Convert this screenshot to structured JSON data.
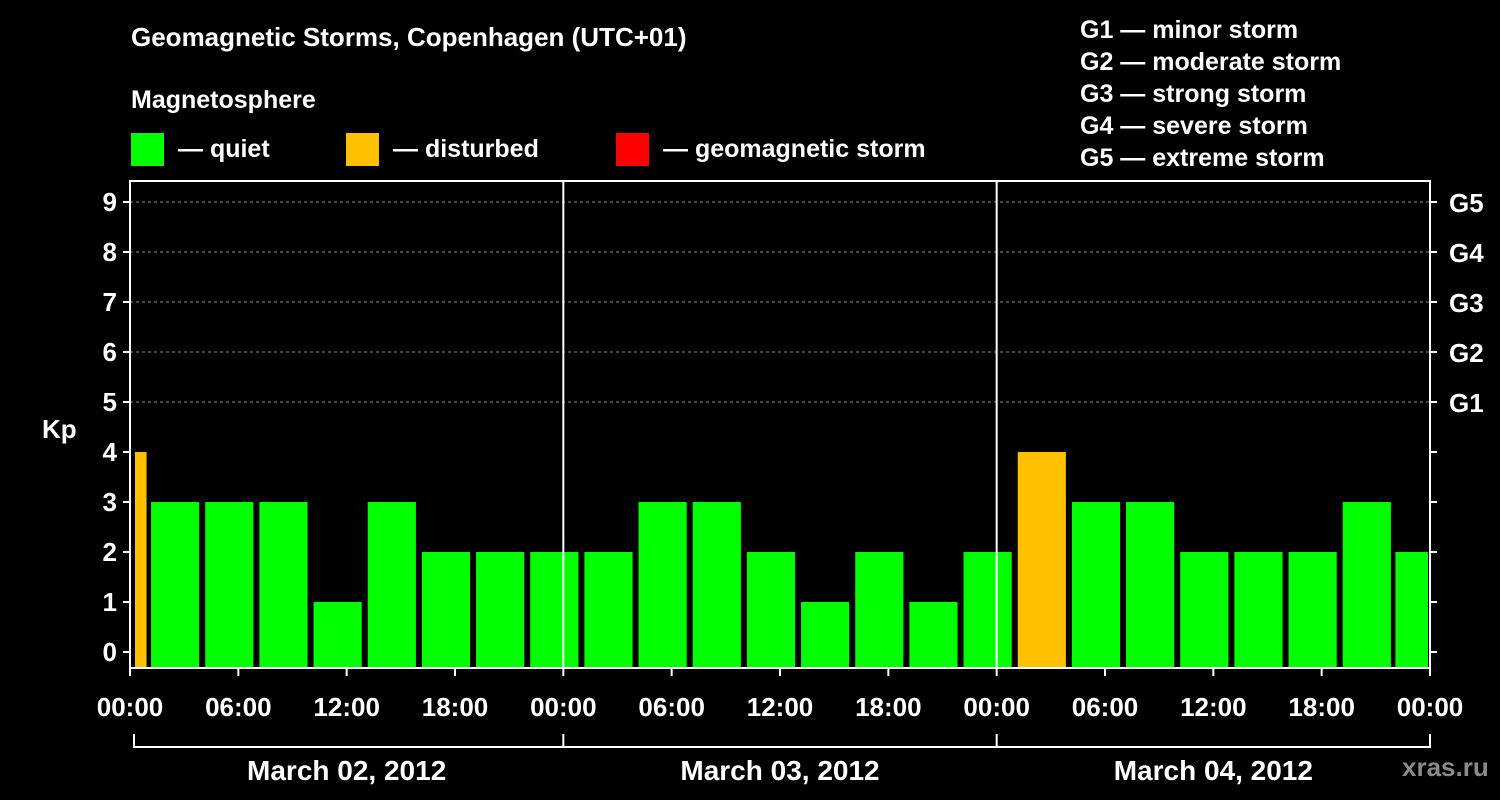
{
  "header": {
    "title": "Geomagnetic Storms, Copenhagen (UTC+01)",
    "subtitle": "Magnetosphere"
  },
  "legend": [
    {
      "color": "#00ff00",
      "label": "— quiet"
    },
    {
      "color": "#ffc000",
      "label": "— disturbed"
    },
    {
      "color": "#ff0000",
      "label": "— geomagnetic storm"
    }
  ],
  "storm_scale": [
    {
      "label": "G1 — minor storm"
    },
    {
      "label": "G2 — moderate storm"
    },
    {
      "label": "G3 — strong storm"
    },
    {
      "label": "G4 — severe storm"
    },
    {
      "label": "G5 — extreme storm"
    }
  ],
  "watermark": "xras.ru",
  "chart_data": {
    "type": "bar",
    "title": "Geomagnetic Storms, Copenhagen (UTC+01)",
    "ylabel": "Kp",
    "ylim": [
      0,
      9
    ],
    "yticks": [
      0,
      1,
      2,
      3,
      4,
      5,
      6,
      7,
      8,
      9
    ],
    "right_ticks": [
      {
        "value": 5,
        "label": "G1"
      },
      {
        "value": 6,
        "label": "G2"
      },
      {
        "value": 7,
        "label": "G3"
      },
      {
        "value": 8,
        "label": "G4"
      },
      {
        "value": 9,
        "label": "G5"
      }
    ],
    "x_hours_range": [
      0,
      72
    ],
    "x_tick_labels": [
      "00:00",
      "06:00",
      "12:00",
      "18:00",
      "00:00",
      "06:00",
      "12:00",
      "18:00",
      "00:00",
      "06:00",
      "12:00",
      "18:00",
      "00:00"
    ],
    "days": [
      "March 02, 2012",
      "March 03, 2012",
      "March 04, 2012"
    ],
    "grid": true,
    "colors": {
      "quiet": "#00ff00",
      "disturbed": "#ffc000",
      "storm": "#ff0000"
    },
    "bars": [
      {
        "start": 0,
        "end": 1,
        "kp": 4
      },
      {
        "start": 1,
        "end": 4,
        "kp": 3
      },
      {
        "start": 4,
        "end": 7,
        "kp": 3
      },
      {
        "start": 7,
        "end": 10,
        "kp": 3
      },
      {
        "start": 10,
        "end": 13,
        "kp": 1
      },
      {
        "start": 13,
        "end": 16,
        "kp": 3
      },
      {
        "start": 16,
        "end": 19,
        "kp": 2
      },
      {
        "start": 19,
        "end": 22,
        "kp": 2
      },
      {
        "start": 22,
        "end": 25,
        "kp": 2
      },
      {
        "start": 25,
        "end": 28,
        "kp": 2
      },
      {
        "start": 28,
        "end": 31,
        "kp": 3
      },
      {
        "start": 31,
        "end": 34,
        "kp": 3
      },
      {
        "start": 34,
        "end": 37,
        "kp": 2
      },
      {
        "start": 37,
        "end": 40,
        "kp": 1
      },
      {
        "start": 40,
        "end": 43,
        "kp": 2
      },
      {
        "start": 43,
        "end": 46,
        "kp": 1
      },
      {
        "start": 46,
        "end": 49,
        "kp": 2
      },
      {
        "start": 49,
        "end": 52,
        "kp": 4
      },
      {
        "start": 52,
        "end": 55,
        "kp": 3
      },
      {
        "start": 55,
        "end": 58,
        "kp": 3
      },
      {
        "start": 58,
        "end": 61,
        "kp": 2
      },
      {
        "start": 61,
        "end": 64,
        "kp": 2
      },
      {
        "start": 64,
        "end": 67,
        "kp": 2
      },
      {
        "start": 67,
        "end": 70,
        "kp": 3
      },
      {
        "start": 70,
        "end": 72,
        "kp": 2
      }
    ]
  }
}
